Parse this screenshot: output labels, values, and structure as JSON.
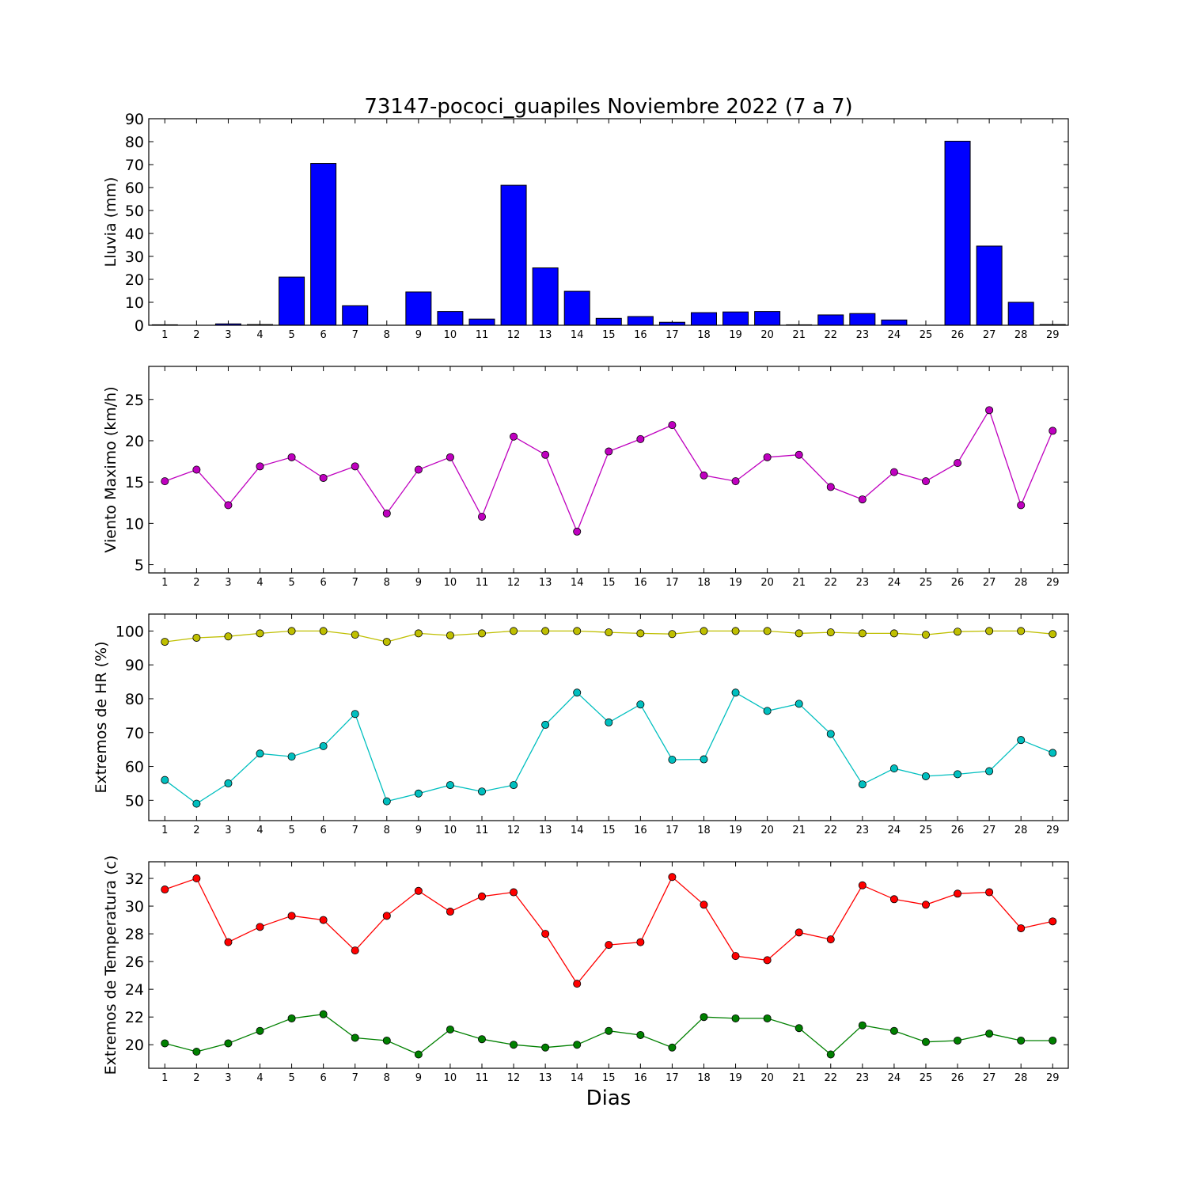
{
  "chart_data": [
    {
      "type": "bar",
      "title": "73147-pococi_guapiles Noviembre 2022  (7 a 7)",
      "ylabel": "Lluvia (mm)",
      "xlabel": "",
      "categories": [
        "1",
        "2",
        "3",
        "4",
        "5",
        "6",
        "7",
        "8",
        "9",
        "10",
        "11",
        "12",
        "13",
        "14",
        "15",
        "16",
        "17",
        "18",
        "19",
        "20",
        "21",
        "22",
        "23",
        "24",
        "25",
        "26",
        "27",
        "28",
        "29"
      ],
      "ylim": [
        0,
        90
      ],
      "yticks": [
        0,
        10,
        20,
        30,
        40,
        50,
        60,
        70,
        80,
        90
      ],
      "series": [
        {
          "color": "#0000ff",
          "values": [
            0.2,
            0,
            0.6,
            0.3,
            21,
            70.5,
            8.5,
            0,
            14.5,
            6,
            2.7,
            61,
            25,
            14.8,
            3,
            3.8,
            1.3,
            5.5,
            5.8,
            6,
            0.2,
            4.5,
            5.1,
            2.3,
            0,
            80.2,
            34.5,
            10,
            0.3
          ]
        }
      ]
    },
    {
      "type": "line",
      "ylabel": "Viento Maximo (km/h)",
      "xlabel": "",
      "x": [
        1,
        2,
        3,
        4,
        5,
        6,
        7,
        8,
        9,
        10,
        11,
        12,
        13,
        14,
        15,
        16,
        17,
        18,
        19,
        20,
        21,
        22,
        23,
        24,
        25,
        26,
        27,
        28,
        29
      ],
      "ylim": [
        4,
        29
      ],
      "yticks": [
        5,
        10,
        15,
        20,
        25
      ],
      "series": [
        {
          "color": "#bf00bf",
          "values": [
            15.1,
            16.5,
            12.2,
            16.9,
            18.0,
            15.5,
            16.9,
            11.2,
            16.5,
            18.0,
            10.8,
            20.5,
            18.3,
            9.0,
            18.7,
            20.2,
            21.9,
            15.8,
            15.1,
            18.0,
            18.3,
            14.4,
            12.9,
            16.2,
            15.1,
            17.3,
            23.7,
            12.2,
            21.2
          ]
        }
      ]
    },
    {
      "type": "line",
      "ylabel": "Extremos de HR (%)",
      "xlabel": "",
      "x": [
        1,
        2,
        3,
        4,
        5,
        6,
        7,
        8,
        9,
        10,
        11,
        12,
        13,
        14,
        15,
        16,
        17,
        18,
        19,
        20,
        21,
        22,
        23,
        24,
        25,
        26,
        27,
        28,
        29
      ],
      "ylim": [
        44,
        105
      ],
      "yticks": [
        50,
        60,
        70,
        80,
        90,
        100
      ],
      "series": [
        {
          "color": "#bfbf00",
          "values": [
            96.8,
            98.0,
            98.4,
            99.3,
            100,
            100,
            98.9,
            96.8,
            99.3,
            98.7,
            99.3,
            100,
            100,
            100,
            99.6,
            99.3,
            99.1,
            100,
            100,
            100,
            99.3,
            99.6,
            99.3,
            99.3,
            98.9,
            99.8,
            100,
            100,
            99.1
          ]
        },
        {
          "color": "#00bfbf",
          "values": [
            56,
            49,
            55,
            63.8,
            62.9,
            66,
            75.5,
            49.7,
            52,
            54.5,
            52.6,
            54.5,
            72.3,
            81.8,
            73,
            78.3,
            62,
            62.1,
            81.8,
            76.4,
            78.5,
            69.6,
            54.7,
            59.4,
            57.1,
            57.7,
            58.6,
            67.8,
            64
          ]
        }
      ]
    },
    {
      "type": "line",
      "ylabel": "Extremos de Temperatura (c)",
      "xlabel": "Dias",
      "x": [
        1,
        2,
        3,
        4,
        5,
        6,
        7,
        8,
        9,
        10,
        11,
        12,
        13,
        14,
        15,
        16,
        17,
        18,
        19,
        20,
        21,
        22,
        23,
        24,
        25,
        26,
        27,
        28,
        29
      ],
      "ylim": [
        18.3,
        33.2
      ],
      "yticks": [
        20,
        22,
        24,
        26,
        28,
        30,
        32
      ],
      "series": [
        {
          "color": "#ff0000",
          "values": [
            31.2,
            32.0,
            27.4,
            28.5,
            29.3,
            29.0,
            26.8,
            29.3,
            31.1,
            29.6,
            30.7,
            31.0,
            28.0,
            24.4,
            27.2,
            27.4,
            32.1,
            30.1,
            26.4,
            26.1,
            28.1,
            27.6,
            31.5,
            30.5,
            30.1,
            30.9,
            31.0,
            28.4,
            28.9
          ]
        },
        {
          "color": "#008000",
          "values": [
            20.1,
            19.5,
            20.1,
            21.0,
            21.9,
            22.2,
            20.5,
            20.3,
            19.3,
            21.1,
            20.4,
            20.0,
            19.8,
            20.0,
            21.0,
            20.7,
            19.8,
            22.0,
            21.9,
            21.9,
            21.2,
            19.3,
            21.4,
            21.0,
            20.2,
            20.3,
            20.8,
            20.3,
            20.3
          ]
        }
      ]
    }
  ]
}
